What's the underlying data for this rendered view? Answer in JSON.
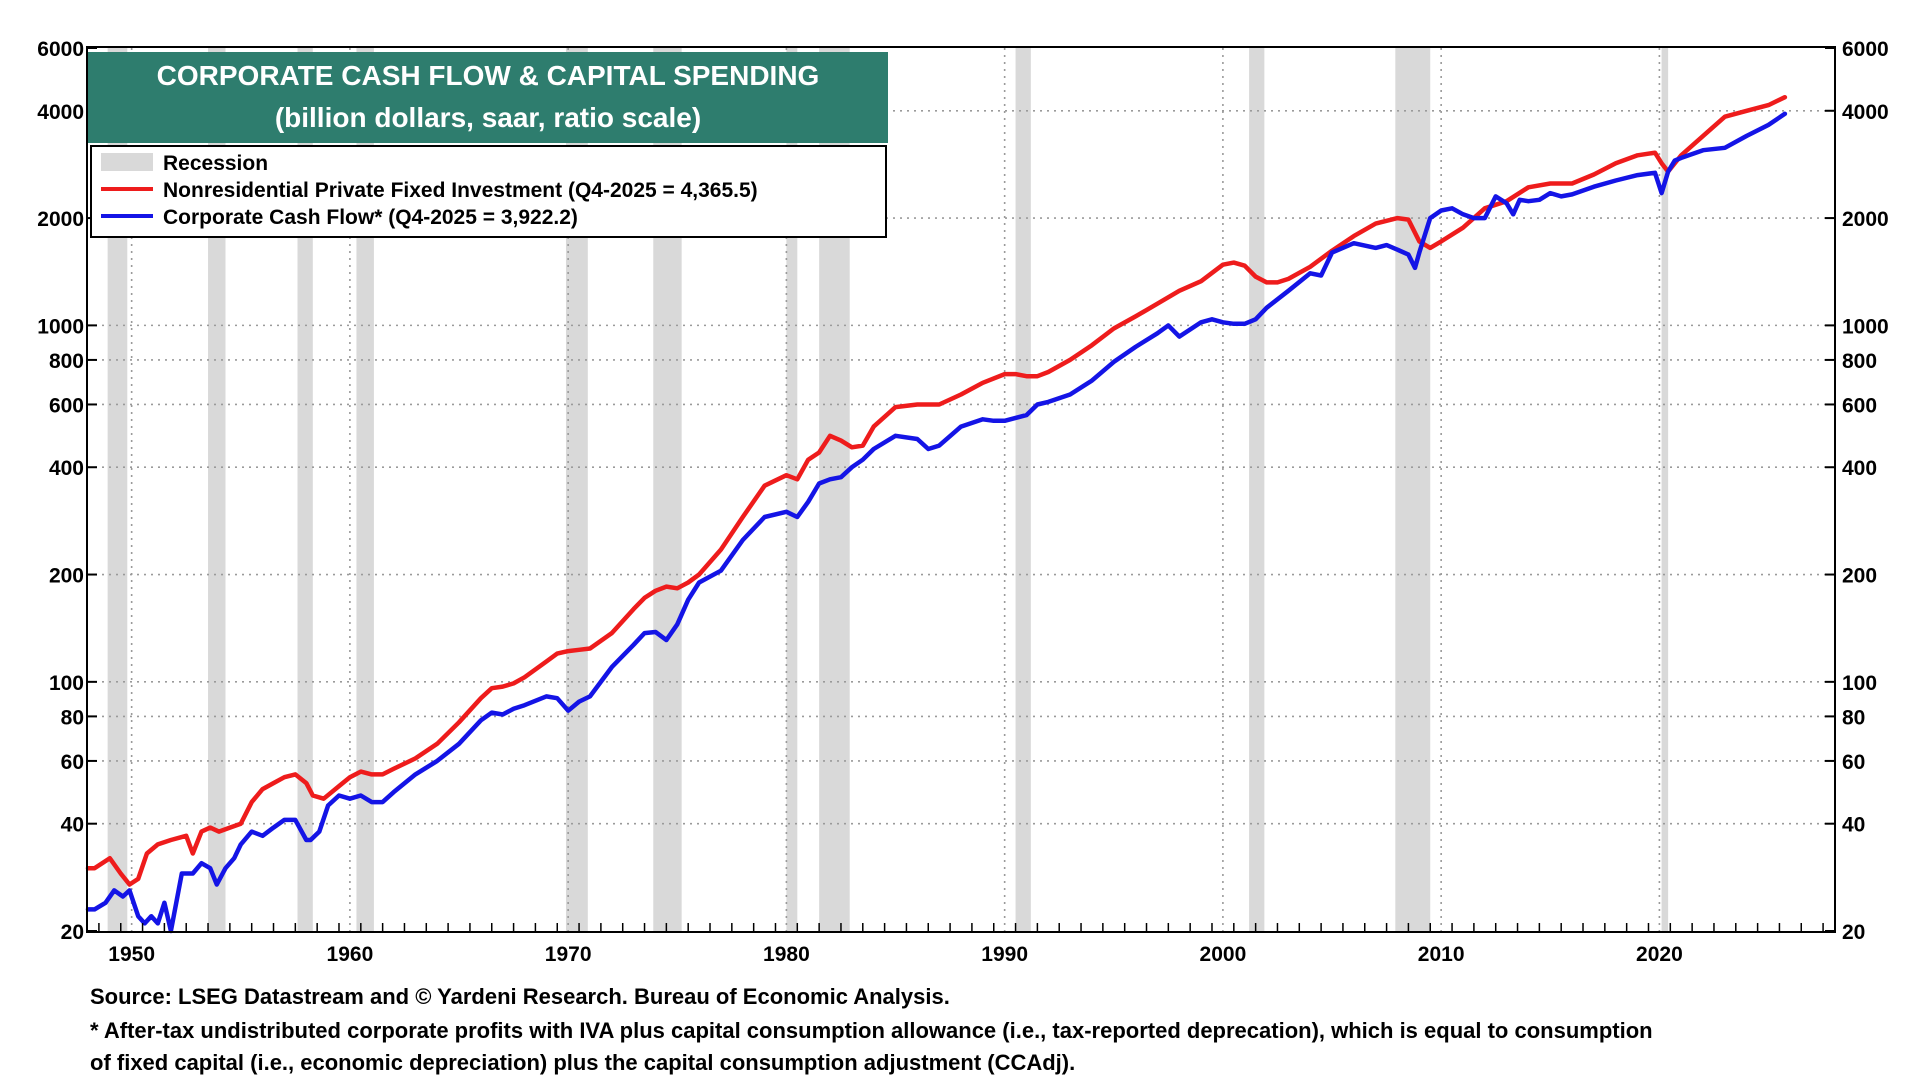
{
  "chart_data": {
    "type": "line",
    "title": "CORPORATE CASH FLOW & CAPITAL SPENDING",
    "subtitle": "(billion dollars, saar, ratio scale)",
    "y_scale": "log",
    "ylim": [
      20,
      6000
    ],
    "xlim": [
      1948,
      2028
    ],
    "y_ticks": [
      20,
      40,
      60,
      80,
      100,
      200,
      400,
      600,
      800,
      1000,
      2000,
      4000,
      6000
    ],
    "x_ticks": [
      1950,
      1960,
      1970,
      1980,
      1990,
      2000,
      2010,
      2020
    ],
    "legend": {
      "position": "top-left",
      "recession_label": "Recession",
      "items": [
        {
          "name": "Nonresidential Private Fixed Investment (Q4-2025 = 4,365.5)",
          "color": "#ee1c1c"
        },
        {
          "name": "Corporate Cash Flow* (Q4-2025 = 3,922.2)",
          "color": "#1414e6"
        }
      ]
    },
    "recessions": [
      [
        1948.9,
        1949.8
      ],
      [
        1953.5,
        1954.3
      ],
      [
        1957.6,
        1958.3
      ],
      [
        1960.3,
        1961.1
      ],
      [
        1969.9,
        1970.9
      ],
      [
        1973.9,
        1975.2
      ],
      [
        1980.0,
        1980.5
      ],
      [
        1981.5,
        1982.9
      ],
      [
        1990.5,
        1991.2
      ],
      [
        2001.2,
        2001.9
      ],
      [
        2007.9,
        2009.5
      ],
      [
        2020.1,
        2020.4
      ]
    ],
    "series": [
      {
        "name": "Nonresidential Private Fixed Investment",
        "color": "#ee1c1c",
        "x": [
          1948,
          1948.3,
          1949,
          1949.5,
          1949.9,
          1950.3,
          1950.7,
          1951.2,
          1951.8,
          1952.5,
          1952.8,
          1953.2,
          1953.6,
          1954,
          1954.5,
          1955,
          1955.5,
          1956,
          1956.5,
          1957,
          1957.5,
          1958,
          1958.3,
          1958.8,
          1959.5,
          1960,
          1960.5,
          1961,
          1961.5,
          1962,
          1963,
          1964,
          1965,
          1966,
          1966.5,
          1967,
          1967.5,
          1968,
          1969,
          1969.5,
          1970,
          1970.5,
          1971,
          1972,
          1973,
          1973.5,
          1974,
          1974.5,
          1975,
          1975.5,
          1976,
          1977,
          1978,
          1979,
          1980,
          1980.5,
          1981,
          1981.5,
          1982,
          1982.5,
          1983,
          1983.5,
          1984,
          1985,
          1986,
          1987,
          1988,
          1989,
          1990,
          1990.5,
          1991,
          1991.5,
          1992,
          1993,
          1994,
          1995,
          1996,
          1997,
          1998,
          1999,
          2000,
          2000.5,
          2001,
          2001.5,
          2002,
          2002.5,
          2003,
          2004,
          2005,
          2006,
          2007,
          2008,
          2008.5,
          2009,
          2009.5,
          2010,
          2011,
          2012,
          2013,
          2014,
          2015,
          2016,
          2017,
          2018,
          2019,
          2019.8,
          2020.1,
          2020.4,
          2020.8,
          2021,
          2022,
          2023,
          2024,
          2025,
          2025.75
        ],
        "values": [
          30,
          30,
          32,
          29,
          27,
          28,
          33,
          35,
          36,
          37,
          33,
          38,
          39,
          38,
          39,
          40,
          46,
          50,
          52,
          54,
          55,
          52,
          48,
          47,
          51,
          54,
          56,
          55,
          55,
          57,
          61,
          67,
          77,
          90,
          96,
          97,
          99,
          103,
          114,
          120,
          122,
          123,
          124,
          137,
          160,
          172,
          180,
          185,
          183,
          190,
          200,
          235,
          290,
          355,
          380,
          370,
          420,
          440,
          490,
          475,
          455,
          460,
          520,
          590,
          600,
          600,
          640,
          690,
          730,
          730,
          720,
          720,
          740,
          800,
          880,
          980,
          1060,
          1150,
          1250,
          1330,
          1480,
          1500,
          1470,
          1370,
          1320,
          1320,
          1350,
          1460,
          1620,
          1780,
          1930,
          2000,
          1980,
          1720,
          1650,
          1720,
          1880,
          2130,
          2230,
          2440,
          2500,
          2500,
          2650,
          2850,
          3000,
          3050,
          2850,
          2700,
          2900,
          3000,
          3400,
          3850,
          4000,
          4150,
          4365.5
        ]
      },
      {
        "name": "Corporate Cash Flow",
        "color": "#1414e6",
        "x": [
          1948,
          1948.3,
          1948.8,
          1949.2,
          1949.6,
          1949.9,
          1950.3,
          1950.6,
          1950.9,
          1951.2,
          1951.5,
          1951.8,
          1952.3,
          1952.8,
          1953.2,
          1953.6,
          1953.9,
          1954.3,
          1954.7,
          1955,
          1955.5,
          1956,
          1956.5,
          1957,
          1957.5,
          1958,
          1958.2,
          1958.6,
          1959,
          1959.5,
          1960,
          1960.5,
          1961,
          1961.5,
          1962,
          1963,
          1964,
          1965,
          1966,
          1966.5,
          1967,
          1967.5,
          1968,
          1969,
          1969.5,
          1970,
          1970.5,
          1971,
          1972,
          1973,
          1973.5,
          1974,
          1974.5,
          1975,
          1975.5,
          1976,
          1977,
          1978,
          1979,
          1980,
          1980.5,
          1981,
          1981.5,
          1982,
          1982.5,
          1983,
          1983.5,
          1984,
          1985,
          1986,
          1986.5,
          1987,
          1988,
          1989,
          1989.5,
          1990,
          1990.5,
          1991,
          1991.5,
          1992,
          1993,
          1994,
          1995,
          1996,
          1997,
          1997.5,
          1998,
          1999,
          1999.5,
          2000,
          2000.5,
          2001,
          2001.5,
          2002,
          2003,
          2004,
          2004.5,
          2005,
          2006,
          2007,
          2007.5,
          2008,
          2008.5,
          2008.8,
          2009,
          2009.5,
          2010,
          2010.5,
          2011,
          2011.5,
          2012,
          2012.5,
          2013,
          2013.3,
          2013.6,
          2014,
          2014.5,
          2015,
          2015.5,
          2016,
          2017,
          2018,
          2019,
          2019.8,
          2020.1,
          2020.4,
          2020.7,
          2021,
          2022,
          2023,
          2024,
          2025,
          2025.75
        ],
        "values": [
          23,
          23,
          24,
          26,
          25,
          26,
          22,
          21,
          22,
          21,
          24,
          20,
          29,
          29,
          31,
          30,
          27,
          30,
          32,
          35,
          38,
          37,
          39,
          41,
          41,
          36,
          36,
          38,
          45,
          48,
          47,
          48,
          46,
          46,
          49,
          55,
          60,
          67,
          78,
          82,
          81,
          84,
          86,
          91,
          90,
          83,
          88,
          91,
          110,
          127,
          137,
          138,
          131,
          145,
          170,
          190,
          205,
          250,
          290,
          300,
          290,
          320,
          360,
          370,
          375,
          400,
          420,
          450,
          490,
          480,
          450,
          460,
          520,
          545,
          540,
          540,
          550,
          560,
          600,
          610,
          640,
          700,
          790,
          870,
          950,
          1000,
          930,
          1020,
          1040,
          1020,
          1010,
          1010,
          1040,
          1120,
          1250,
          1400,
          1380,
          1600,
          1700,
          1650,
          1680,
          1630,
          1580,
          1450,
          1600,
          2000,
          2100,
          2130,
          2050,
          2000,
          2000,
          2300,
          2200,
          2050,
          2250,
          2230,
          2250,
          2350,
          2300,
          2330,
          2450,
          2550,
          2640,
          2680,
          2350,
          2700,
          2900,
          2950,
          3100,
          3150,
          3400,
          3650,
          3922.2
        ]
      }
    ]
  },
  "footnotes": {
    "source": "Source: LSEG Datastream and © Yardeni Research. Bureau of Economic Analysis.",
    "note_line1": "* After-tax undistributed corporate profits with IVA plus capital consumption allowance (i.e., tax-reported deprecation), which is equal to consumption",
    "note_line2": "of fixed capital (i.e., economic depreciation) plus the capital consumption adjustment (CCAdj)."
  },
  "colors": {
    "title_bg": "#2e7d6e",
    "title_text": "#ffffff",
    "recession": "#d9d9d9",
    "grid": "#9a9a9a"
  }
}
